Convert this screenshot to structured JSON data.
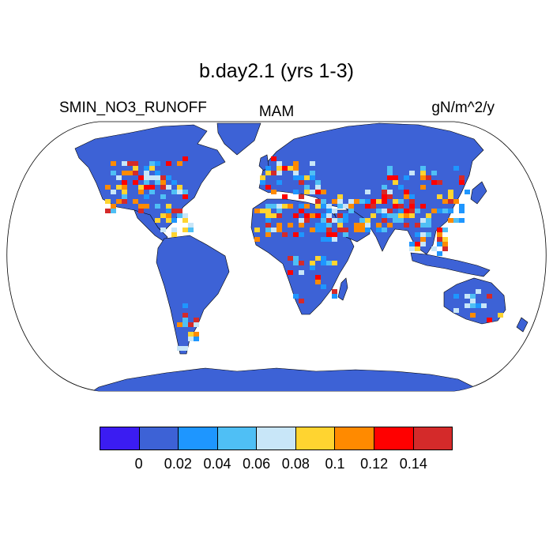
{
  "title": "b.day2.1 (yrs 1-3)",
  "left_label": "SMIN_NO3_RUNOFF",
  "center_label": "MAM",
  "right_label": "gN/m^2/y",
  "map": {
    "projection": "Robinson",
    "ocean_color": "#ffffff",
    "coastline_color": "#000000",
    "dominant_land_color": "#3d62d6",
    "high_value_regions": [
      "eastern United States",
      "Mexico",
      "Sahel",
      "Middle East",
      "India",
      "eastern China",
      "southeast Asia",
      "southern Africa",
      "southern South America",
      "Australia"
    ]
  },
  "colorbar": {
    "colors": [
      "#3b1cf2",
      "#3d62d6",
      "#1e96ff",
      "#4fbff5",
      "#c8e6f8",
      "#ffd430",
      "#ff8a00",
      "#ff0000",
      "#d42a2a"
    ],
    "tick_labels": [
      "0",
      "0.02",
      "0.04",
      "0.06",
      "0.08",
      "0.1",
      "0.12",
      "0.14"
    ],
    "tick_values": [
      0,
      0.02,
      0.04,
      0.06,
      0.08,
      0.1,
      0.12,
      0.14
    ]
  }
}
